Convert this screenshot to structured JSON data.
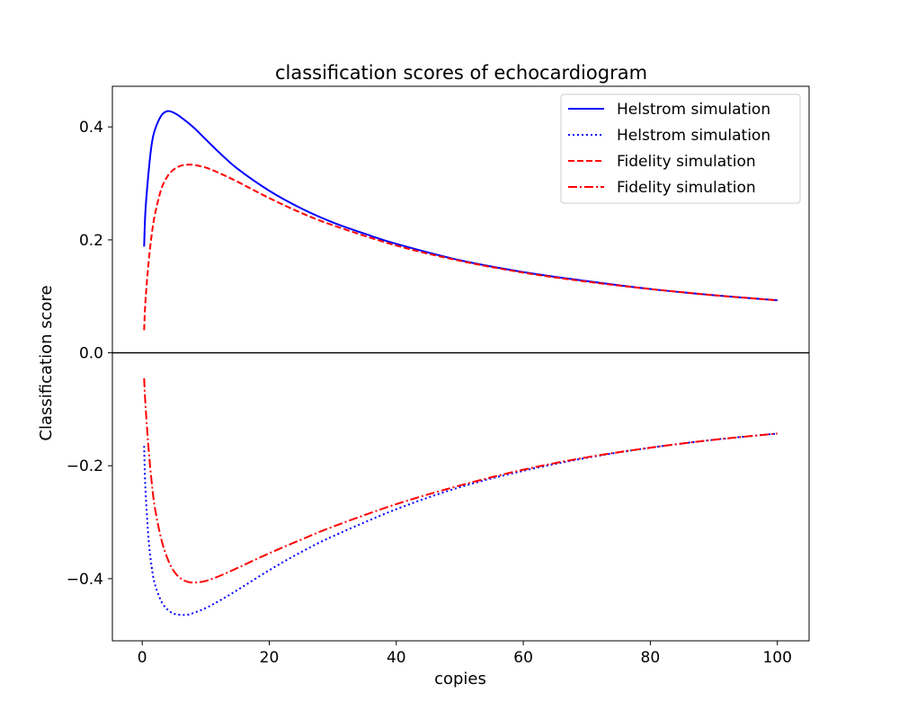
{
  "chart_data": {
    "type": "line",
    "title": "classification scores of echocardiogram",
    "xlabel": "copies",
    "ylabel": "Classification score",
    "xlim": [
      -4.7,
      105.0
    ],
    "ylim": [
      -0.51,
      0.472
    ],
    "xticks": [
      {
        "value": 0,
        "label": "0"
      },
      {
        "value": 20,
        "label": "20"
      },
      {
        "value": 40,
        "label": "40"
      },
      {
        "value": 60,
        "label": "60"
      },
      {
        "value": 80,
        "label": "80"
      },
      {
        "value": 100,
        "label": "100"
      }
    ],
    "yticks": [
      {
        "value": 0.4,
        "label": "0.4"
      },
      {
        "value": 0.2,
        "label": "0.2"
      },
      {
        "value": 0.0,
        "label": "0.0"
      },
      {
        "value": -0.2,
        "label": "−0.2"
      },
      {
        "value": -0.4,
        "label": "−0.4"
      }
    ],
    "zero_line": true,
    "grid": false,
    "legend_position": "top-right",
    "series": [
      {
        "name": "Helstrom simulation",
        "color": "#0000ff",
        "dash": "solid",
        "x": [
          0.3,
          0.5,
          1,
          1.5,
          2,
          3,
          4,
          5,
          6,
          8,
          10,
          12,
          15,
          20,
          25,
          30,
          35,
          40,
          50,
          60,
          70,
          80,
          90,
          100
        ],
        "y": [
          0.188,
          0.25,
          0.32,
          0.37,
          0.395,
          0.42,
          0.428,
          0.425,
          0.418,
          0.4,
          0.378,
          0.356,
          0.326,
          0.287,
          0.256,
          0.231,
          0.211,
          0.193,
          0.164,
          0.143,
          0.127,
          0.113,
          0.102,
          0.093
        ]
      },
      {
        "name": "Helstrom simulation",
        "color": "#0000ff",
        "dash": "dotted",
        "x": [
          0.3,
          0.5,
          1,
          1.5,
          2,
          3,
          4,
          5,
          6,
          7,
          8,
          10,
          12,
          15,
          20,
          25,
          30,
          40,
          50,
          60,
          70,
          80,
          90,
          100
        ],
        "y": [
          -0.165,
          -0.24,
          -0.33,
          -0.38,
          -0.41,
          -0.44,
          -0.455,
          -0.462,
          -0.464,
          -0.464,
          -0.461,
          -0.452,
          -0.44,
          -0.42,
          -0.385,
          -0.353,
          -0.325,
          -0.277,
          -0.238,
          -0.209,
          -0.186,
          -0.168,
          -0.154,
          -0.143
        ]
      },
      {
        "name": "Fidelity simulation",
        "color": "#ff0000",
        "dash": "dashed",
        "x": [
          0.3,
          0.5,
          1,
          1.5,
          2,
          3,
          4,
          5,
          6,
          7,
          8,
          10,
          12,
          15,
          20,
          25,
          30,
          40,
          50,
          60,
          70,
          80,
          90,
          100
        ],
        "y": [
          0.04,
          0.09,
          0.16,
          0.21,
          0.245,
          0.29,
          0.313,
          0.325,
          0.331,
          0.333,
          0.333,
          0.328,
          0.319,
          0.303,
          0.274,
          0.248,
          0.226,
          0.19,
          0.163,
          0.142,
          0.126,
          0.113,
          0.102,
          0.093
        ]
      },
      {
        "name": "Fidelity simulation",
        "color": "#ff0000",
        "dash": "dashdot",
        "x": [
          0.3,
          0.5,
          1,
          1.5,
          2,
          3,
          4,
          5,
          6,
          7,
          8,
          9,
          10,
          12,
          15,
          20,
          25,
          30,
          40,
          50,
          60,
          70,
          80,
          90,
          100
        ],
        "y": [
          -0.045,
          -0.09,
          -0.17,
          -0.23,
          -0.275,
          -0.33,
          -0.365,
          -0.387,
          -0.399,
          -0.405,
          -0.407,
          -0.406,
          -0.404,
          -0.396,
          -0.381,
          -0.355,
          -0.331,
          -0.308,
          -0.268,
          -0.235,
          -0.207,
          -0.185,
          -0.168,
          -0.154,
          -0.143
        ]
      }
    ]
  }
}
